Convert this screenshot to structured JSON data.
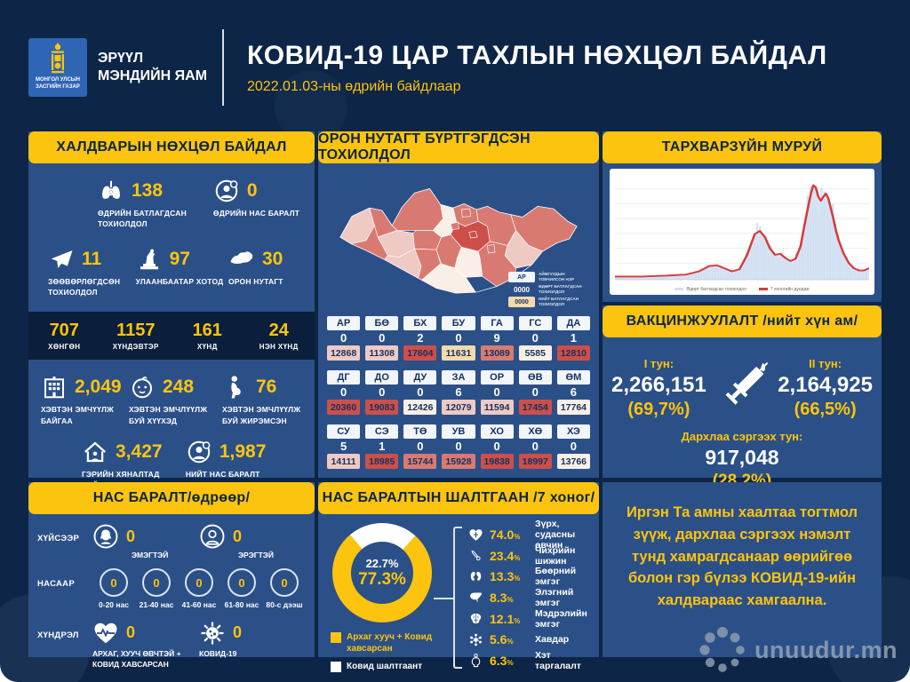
{
  "header": {
    "gov_label": "МОНГОЛ УЛСЫН ЗАСГИЙН ГАЗАР",
    "ministry": "ЭРҮҮЛ МЭНДИЙН ЯАМ",
    "title": "КОВИД-19 ЦАР ТАХЛЫН НӨХЦӨЛ БАЙДАЛ",
    "date_line": "2022.01.03-ны өдрийн байдлаар"
  },
  "colors": {
    "accent_yellow": "#fcc40f",
    "panel_blue": "#2b5087",
    "canvas_navy": "#0d2546",
    "band_navy": "#0b1e3c",
    "curve_line_red": "#d93a3a",
    "curve_area_blue": "#d2e0f3",
    "tone_dark": "#cc4f4a",
    "tone_med": "#d97a72",
    "tone_light": "#efc9c4",
    "tone_pale": "#f9efe6",
    "tone_peach": "#f4d9ad"
  },
  "infection_panel": {
    "title": "ХАЛДВАРЫН НӨХЦӨЛ БАЙДАЛ",
    "row1": [
      {
        "icon": "lungs-icon",
        "value": "138",
        "label": "ӨДРИЙН БАТЛАГДСАН ТОХИОЛДОЛ"
      },
      {
        "icon": "person-death-icon",
        "value": "0",
        "label": "ӨДРИЙН НАС БАРАЛТ"
      }
    ],
    "row2": [
      {
        "icon": "airplane-icon",
        "value": "11",
        "label": "ЗӨӨВӨРЛӨГДСӨН ТОХИОЛДОЛ"
      },
      {
        "icon": "monument-icon",
        "value": "97",
        "label": "УЛААНБААТАР ХОТОД"
      },
      {
        "icon": "mongolia-map-icon",
        "value": "30",
        "label": "ОРОН НУТАГТ"
      }
    ],
    "severity_band": [
      {
        "value": "707",
        "label": "ХӨНГӨН"
      },
      {
        "value": "1157",
        "label": "ХҮНДЭВТЭР"
      },
      {
        "value": "161",
        "label": "ХҮНД"
      },
      {
        "value": "24",
        "label": "НЭН ХҮНД"
      }
    ],
    "row3": [
      {
        "icon": "hospital-icon",
        "value": "2,049",
        "label": "ХЭВТЭН ЭМЧҮҮЛЖ БАЙГАА"
      },
      {
        "icon": "baby-icon",
        "value": "248",
        "label": "ХЭВТЭН ЭМЧЛҮҮЛЖ БУЙ ХҮҮХЭД"
      },
      {
        "icon": "pregnant-icon",
        "value": "76",
        "label": "ХЭВТЭН ЭМЧЛҮҮЛЖ БУЙ ЖИРЭМСЭН"
      }
    ],
    "row4": [
      {
        "icon": "home-icon",
        "value": "3,427",
        "label": "ГЭРИЙН ХЯНАЛТАД БАЙГАА"
      },
      {
        "icon": "person-death-icon",
        "value": "1,987",
        "label": "НИЙТ НАС БАРАЛТ"
      }
    ]
  },
  "region_panel": {
    "title": "ОРОН НУТАГТ БҮРТГЭГДСЭН ТОХИОЛДОЛ",
    "legend": [
      {
        "sample": "АР",
        "style": "code",
        "label": "АЙМГУУДЫН ТОВЧИЛСОН НЭР"
      },
      {
        "sample": "0000",
        "style": "daily",
        "label": "ӨДӨРТ БАТЛАГДСАН ТОХИОЛДОЛ"
      },
      {
        "sample": "0000",
        "style": "total",
        "label": "НИЙТ БАТЛАГДСАН ТОХИОЛДОЛ"
      }
    ],
    "rows": [
      [
        {
          "code": "АР",
          "daily": "0",
          "total": "12868",
          "tone": "light"
        },
        {
          "code": "БӨ",
          "daily": "0",
          "total": "11308",
          "tone": "light"
        },
        {
          "code": "БХ",
          "daily": "2",
          "total": "17604",
          "tone": "dark"
        },
        {
          "code": "БУ",
          "daily": "0",
          "total": "11631",
          "tone": "peach"
        },
        {
          "code": "ГА",
          "daily": "9",
          "total": "13089",
          "tone": "med"
        },
        {
          "code": "ГС",
          "daily": "0",
          "total": "5585",
          "tone": "pale"
        },
        {
          "code": "ДА",
          "daily": "1",
          "total": "12810",
          "tone": "dark"
        }
      ],
      [
        {
          "code": "ДГ",
          "daily": "0",
          "total": "20360",
          "tone": "dark"
        },
        {
          "code": "ДО",
          "daily": "0",
          "total": "19083",
          "tone": "dark"
        },
        {
          "code": "ДУ",
          "daily": "0",
          "total": "12426",
          "tone": "pale"
        },
        {
          "code": "ЗА",
          "daily": "6",
          "total": "12079",
          "tone": "light"
        },
        {
          "code": "ОР",
          "daily": "0",
          "total": "11594",
          "tone": "light"
        },
        {
          "code": "ӨВ",
          "daily": "0",
          "total": "17454",
          "tone": "dark"
        },
        {
          "code": "ӨМ",
          "daily": "6",
          "total": "17764",
          "tone": "pale"
        }
      ],
      [
        {
          "code": "СУ",
          "daily": "5",
          "total": "14111",
          "tone": "light"
        },
        {
          "code": "СЭ",
          "daily": "1",
          "total": "18985",
          "tone": "dark"
        },
        {
          "code": "ТӨ",
          "daily": "0",
          "total": "15744",
          "tone": "med"
        },
        {
          "code": "УВ",
          "daily": "0",
          "total": "15928",
          "tone": "med"
        },
        {
          "code": "ХО",
          "daily": "0",
          "total": "19838",
          "tone": "dark"
        },
        {
          "code": "ХӨ",
          "daily": "0",
          "total": "18997",
          "tone": "dark"
        },
        {
          "code": "ХЭ",
          "daily": "0",
          "total": "13766",
          "tone": "pale"
        }
      ]
    ],
    "map_tones": {
      "bo": "light",
      "uv": "med",
      "ho": "med",
      "za": "light",
      "ga": "light",
      "hs": "med",
      "ar": "med",
      "bh": "med",
      "bu": "pale",
      "se": "med",
      "da": "med",
      "or": "med",
      "to": "dark",
      "ub": "dark",
      "he": "med",
      "do": "med",
      "su": "light",
      "dg": "med",
      "gs": "med",
      "du": "pale",
      "ov": "med",
      "om": "pale"
    }
  },
  "curve_panel": {
    "title": "ТАРХВАРЗҮЙН МУРУЙ",
    "legend": [
      {
        "label": "Өдөрт батлагдсан тохиолдол",
        "color": "#d2e0f3"
      },
      {
        "label": "7 хоногийн дундаж",
        "color": "#d93a3a"
      }
    ]
  },
  "vaccine_panel": {
    "title": "ВАКЦИНЖУУЛАЛТ /нийт хүн ам/",
    "dose1_label": "I тун:",
    "dose1_value": "2,266,151",
    "dose1_pct": "(69,7%)",
    "dose2_label": "II тун:",
    "dose2_value": "2,164,925",
    "dose2_pct": "(66,5%)",
    "booster_label": "Дархлаа сэргээх тун:",
    "booster_value": "917,048",
    "booster_pct": "(28,2%)"
  },
  "death_panel": {
    "title": "НАС БАРАЛТ/өдрөөр/",
    "sex_label": "ХҮЙСЭЭР",
    "age_label": "НАСААР",
    "comp_label": "ХҮНДРЭЛ",
    "sex": [
      {
        "icon": "female-icon",
        "value": "0",
        "label": "ЭМЭГТЭЙ"
      },
      {
        "icon": "male-icon",
        "value": "0",
        "label": "ЭРЭГТЭЙ"
      }
    ],
    "ages": [
      {
        "value": "0",
        "label": "0-20 нас"
      },
      {
        "value": "0",
        "label": "21-40 нас"
      },
      {
        "value": "0",
        "label": "41-60 нас"
      },
      {
        "value": "0",
        "label": "61-80 нас"
      },
      {
        "value": "0",
        "label": "80-с дээш"
      }
    ],
    "complications": [
      {
        "icon": "heart-pulse-icon",
        "value": "0",
        "label": "АРХАГ, ХУУЧ ӨВЧТЭЙ + КОВИД ХАВСАРСАН"
      },
      {
        "icon": "virus-icon",
        "value": "0",
        "label": "КОВИД-19"
      }
    ]
  },
  "cause_panel": {
    "title": "НАС БАРАЛТЫН ШАЛТГААН /7 хоног/",
    "donut_covid_pct": "22.7",
    "donut_comorbid_pct": "77.3",
    "legend": [
      {
        "color": "#fcc40f",
        "label": "Архаг хууч + Ковид хавсарсан"
      },
      {
        "color": "#ffffff",
        "label": "Ковид шалтгаант"
      }
    ],
    "causes": [
      {
        "icon": "heart-icon",
        "pct": "74.0",
        "label": "Зүрх, судасны өвчин"
      },
      {
        "icon": "diabetes-icon",
        "pct": "23.4",
        "label": "Чихрийн шижин"
      },
      {
        "icon": "kidney-icon",
        "pct": "13.3",
        "label": "Бөөрний эмгэг"
      },
      {
        "icon": "liver-icon",
        "pct": "8.3",
        "label": "Элэгний эмгэг"
      },
      {
        "icon": "brain-icon",
        "pct": "12.1",
        "label": "Мэдрэлийн эмгэг"
      },
      {
        "icon": "cancer-icon",
        "pct": "5.6",
        "label": "Хавдар"
      },
      {
        "icon": "obesity-icon",
        "pct": "6.3",
        "label": "Хэт таргалалт"
      }
    ]
  },
  "message_panel": {
    "text": "Иргэн Та амны хаалтаа тогтмол зүүж, дархлаа сэргээх нэмэлт тунд хамрагдсанаар өөрийгөө болон гэр бүлээ КОВИД-19-ийн халдвараас хамгаална."
  },
  "watermark": {
    "text": "unuudur.mn"
  },
  "chart_data": [
    {
      "type": "area",
      "title": "ТАРХВАРЗҮЙН МУРУЙ",
      "note": "Epidemiological curve; axes unlabeled in image, values estimated as % of plot (x 0-100 time, y 0-100 relative case height)",
      "legend_position": "bottom",
      "grid": true,
      "series": [
        {
          "name": "Өдөрт батлагдсан тохиолдол",
          "style": "area+bars",
          "color": "#d2e0f3",
          "points": [
            [
              0,
              3
            ],
            [
              10,
              3
            ],
            [
              20,
              4
            ],
            [
              28,
              5
            ],
            [
              33,
              8
            ],
            [
              37,
              13
            ],
            [
              40,
              14
            ],
            [
              43,
              11
            ],
            [
              46,
              8
            ],
            [
              49,
              10
            ],
            [
              52,
              24
            ],
            [
              55,
              44
            ],
            [
              57,
              47
            ],
            [
              59,
              41
            ],
            [
              61,
              30
            ],
            [
              63,
              24
            ],
            [
              65,
              25
            ],
            [
              67,
              21
            ],
            [
              69,
              18
            ],
            [
              71,
              20
            ],
            [
              73,
              32
            ],
            [
              75,
              58
            ],
            [
              77,
              82
            ],
            [
              78,
              91
            ],
            [
              79,
              89
            ],
            [
              80,
              80
            ],
            [
              81,
              76
            ],
            [
              82,
              80
            ],
            [
              83,
              83
            ],
            [
              84,
              78
            ],
            [
              85,
              68
            ],
            [
              86,
              58
            ],
            [
              87,
              47
            ],
            [
              88,
              38
            ],
            [
              90,
              25
            ],
            [
              92,
              16
            ],
            [
              94,
              11
            ],
            [
              96,
              9
            ],
            [
              98,
              9
            ],
            [
              100,
              11
            ]
          ]
        },
        {
          "name": "7 хоногийн дундаж",
          "style": "line",
          "color": "#d93a3a",
          "points": "same shape as area series"
        }
      ]
    },
    {
      "type": "pie",
      "title": "НАС БАРАЛТЫН ШАЛТГААН /7 хоног/ - donut",
      "categories": [
        "Ковид шалтгаант",
        "Архаг хууч + Ковид хавсарсан"
      ],
      "values": [
        22.7,
        77.3
      ],
      "colors": [
        "#ffffff",
        "#fcc40f"
      ]
    },
    {
      "type": "bar",
      "title": "Нас баралтын шалтгаан - хавсарсан өвчнөөр (%)",
      "categories": [
        "Зүрх, судасны өвчин",
        "Чихрийн шижин",
        "Бөөрний эмгэг",
        "Элэгний эмгэг",
        "Мэдрэлийн эмгэг",
        "Хавдар",
        "Хэт таргалалт"
      ],
      "values": [
        74.0,
        23.4,
        13.3,
        8.3,
        12.1,
        5.6,
        6.3
      ]
    },
    {
      "type": "table",
      "title": "ОРОН НУТАГТ БҮРТГЭГДСЭН ТОХИОЛДОЛ",
      "columns": [
        "Аймгийн товчилсон нэр",
        "Өдөрт батлагдсан",
        "Нийт батлагдсан"
      ],
      "rows": [
        [
          "АР",
          0,
          12868
        ],
        [
          "БӨ",
          0,
          11308
        ],
        [
          "БХ",
          2,
          17604
        ],
        [
          "БУ",
          0,
          11631
        ],
        [
          "ГА",
          9,
          13089
        ],
        [
          "ГС",
          0,
          5585
        ],
        [
          "ДА",
          1,
          12810
        ],
        [
          "ДГ",
          0,
          20360
        ],
        [
          "ДО",
          0,
          19083
        ],
        [
          "ДУ",
          0,
          12426
        ],
        [
          "ЗА",
          6,
          12079
        ],
        [
          "ОР",
          0,
          11594
        ],
        [
          "ӨВ",
          0,
          17454
        ],
        [
          "ӨМ",
          6,
          17764
        ],
        [
          "СУ",
          5,
          14111
        ],
        [
          "СЭ",
          1,
          18985
        ],
        [
          "ТӨ",
          0,
          15744
        ],
        [
          "УВ",
          0,
          15928
        ],
        [
          "ХО",
          0,
          19838
        ],
        [
          "ХӨ",
          0,
          18997
        ],
        [
          "ХЭ",
          0,
          13766
        ]
      ]
    }
  ]
}
